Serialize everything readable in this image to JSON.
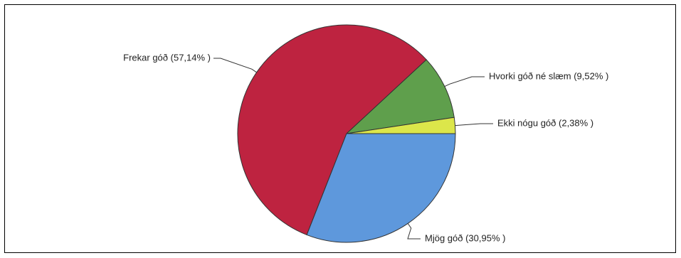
{
  "chart_data": {
    "type": "pie",
    "title": "",
    "slices": [
      {
        "label": "Frekar góð (57,14% )",
        "value": 57.14,
        "color": "#be2340"
      },
      {
        "label": "Hvorki góð né slæm (9,52% )",
        "value": 9.52,
        "color": "#5f9f4c"
      },
      {
        "label": "Ekki nógu góð (2,38% )",
        "value": 2.38,
        "color": "#dce64a"
      },
      {
        "label": "Mjög góð (30,95% )",
        "value": 30.95,
        "color": "#5e98dc"
      }
    ],
    "legend": "none"
  }
}
